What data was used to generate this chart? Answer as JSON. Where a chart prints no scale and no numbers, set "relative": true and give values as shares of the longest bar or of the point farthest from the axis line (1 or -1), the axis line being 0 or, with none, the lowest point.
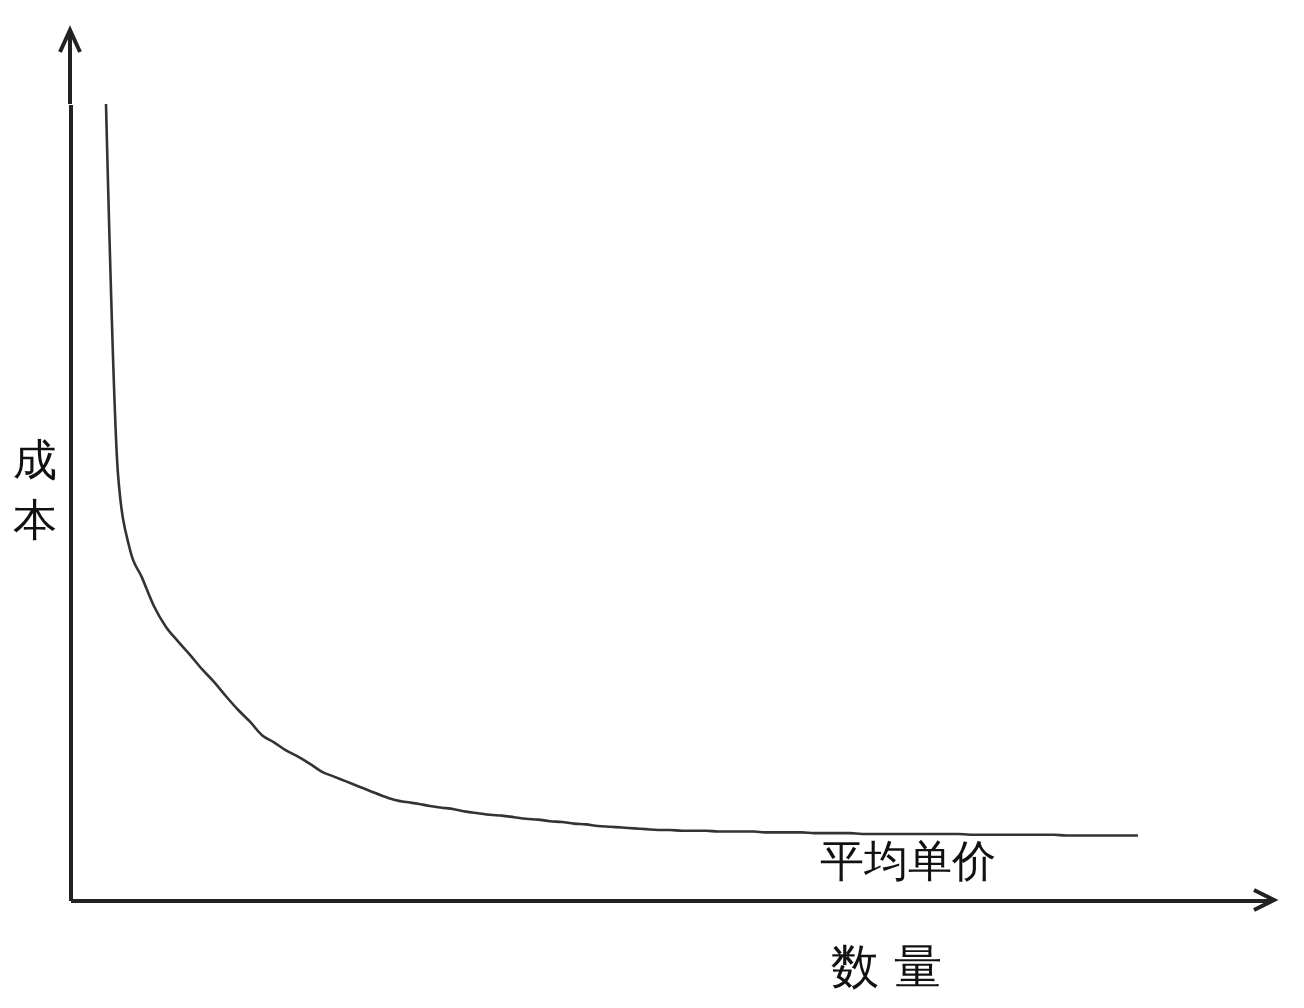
{
  "chart_data": {
    "type": "line",
    "relative": true,
    "xlabel": "数 量",
    "ylabel": "成本",
    "annotations": [
      "平均单价"
    ],
    "categories": [
      null,
      null,
      null,
      null,
      null,
      null,
      null,
      null,
      null,
      null,
      null,
      null,
      null,
      null,
      null,
      null,
      null,
      null,
      null,
      null,
      null,
      null,
      null,
      null,
      null,
      null,
      null,
      null,
      null,
      null,
      null,
      null,
      null,
      null,
      null,
      null,
      null,
      null,
      null,
      null,
      null,
      null,
      null,
      null,
      null,
      null,
      null,
      null,
      null,
      null,
      null,
      null,
      null,
      null,
      null,
      null,
      null,
      null,
      null,
      null,
      null,
      null,
      null,
      null,
      null,
      null,
      null,
      null,
      null,
      null,
      null,
      null,
      null,
      null,
      null,
      null,
      null,
      null,
      null,
      null,
      null,
      null,
      null,
      null,
      null,
      null,
      null,
      null,
      null,
      null,
      null,
      null,
      null,
      null,
      null,
      null,
      null,
      null,
      null,
      null,
      null
    ],
    "series": [
      {
        "color": "#333333",
        "values": [
          null,
          null,
          null,
          1.0,
          0.535,
          0.44,
          0.405,
          0.369,
          0.343,
          0.325,
          0.308,
          0.29,
          0.274,
          0.256,
          0.239,
          0.224,
          0.207,
          0.198,
          0.188,
          0.18,
          0.171,
          0.161,
          0.155,
          0.149,
          0.143,
          0.137,
          0.131,
          0.126,
          0.123,
          0.121,
          0.118,
          0.116,
          0.114,
          0.111,
          0.109,
          0.107,
          0.106,
          0.104,
          0.102,
          0.101,
          0.099,
          0.098,
          0.096,
          0.095,
          0.093,
          0.092,
          0.091,
          0.09,
          0.089,
          0.088,
          0.088,
          0.087,
          0.087,
          0.087,
          0.086,
          0.086,
          0.086,
          0.086,
          0.085,
          0.085,
          0.085,
          0.085,
          0.084,
          0.084,
          0.084,
          0.084,
          0.083,
          0.083,
          0.083,
          0.083,
          0.083,
          0.083,
          0.083,
          0.083,
          0.083,
          0.082,
          0.082,
          0.082,
          0.082,
          0.082,
          0.082,
          0.082,
          0.082,
          0.081,
          0.081,
          0.081,
          0.081,
          0.081,
          0.081,
          0.081,
          null,
          null,
          null,
          null,
          null,
          null,
          null,
          null,
          null,
          null,
          null
        ]
      }
    ],
    "grid": false,
    "marker": "none",
    "line_style": "solid"
  }
}
